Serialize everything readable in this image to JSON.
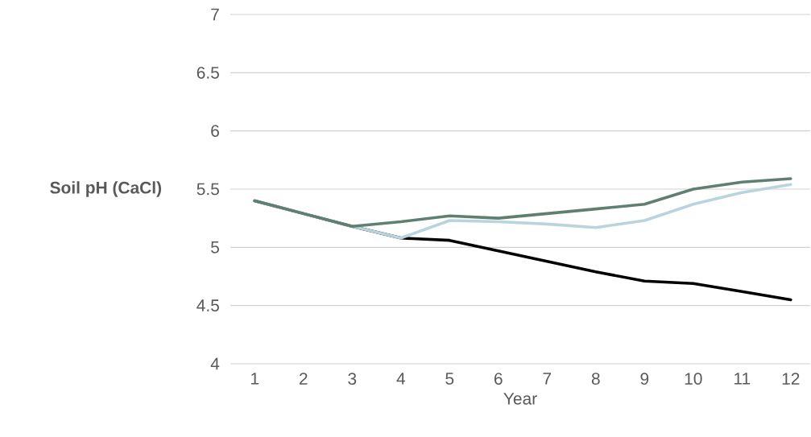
{
  "chart_data": {
    "type": "line",
    "xlabel": "Year",
    "ylabel": "Soil pH (CaCl)",
    "categories": [
      "1",
      "2",
      "3",
      "4",
      "5",
      "6",
      "7",
      "8",
      "9",
      "10",
      "11",
      "12"
    ],
    "series": [
      {
        "color": "#000000",
        "values": [
          5.4,
          5.29,
          5.18,
          5.08,
          5.06,
          4.97,
          4.88,
          4.79,
          4.71,
          4.69,
          4.62,
          4.55
        ]
      },
      {
        "color": "#b9d4dc",
        "values": [
          5.4,
          5.29,
          5.18,
          5.08,
          5.23,
          5.22,
          5.2,
          5.17,
          5.23,
          5.37,
          5.47,
          5.54
        ]
      },
      {
        "color": "#5f8070",
        "values": [
          5.4,
          5.29,
          5.18,
          5.22,
          5.27,
          5.25,
          5.29,
          5.33,
          5.37,
          5.5,
          5.56,
          5.59
        ]
      }
    ],
    "ylim": [
      4,
      7
    ],
    "yticks": [
      4,
      4.5,
      5,
      5.5,
      6,
      6.5,
      7
    ],
    "grid": "y",
    "marker": "none",
    "line_style": "solid"
  }
}
